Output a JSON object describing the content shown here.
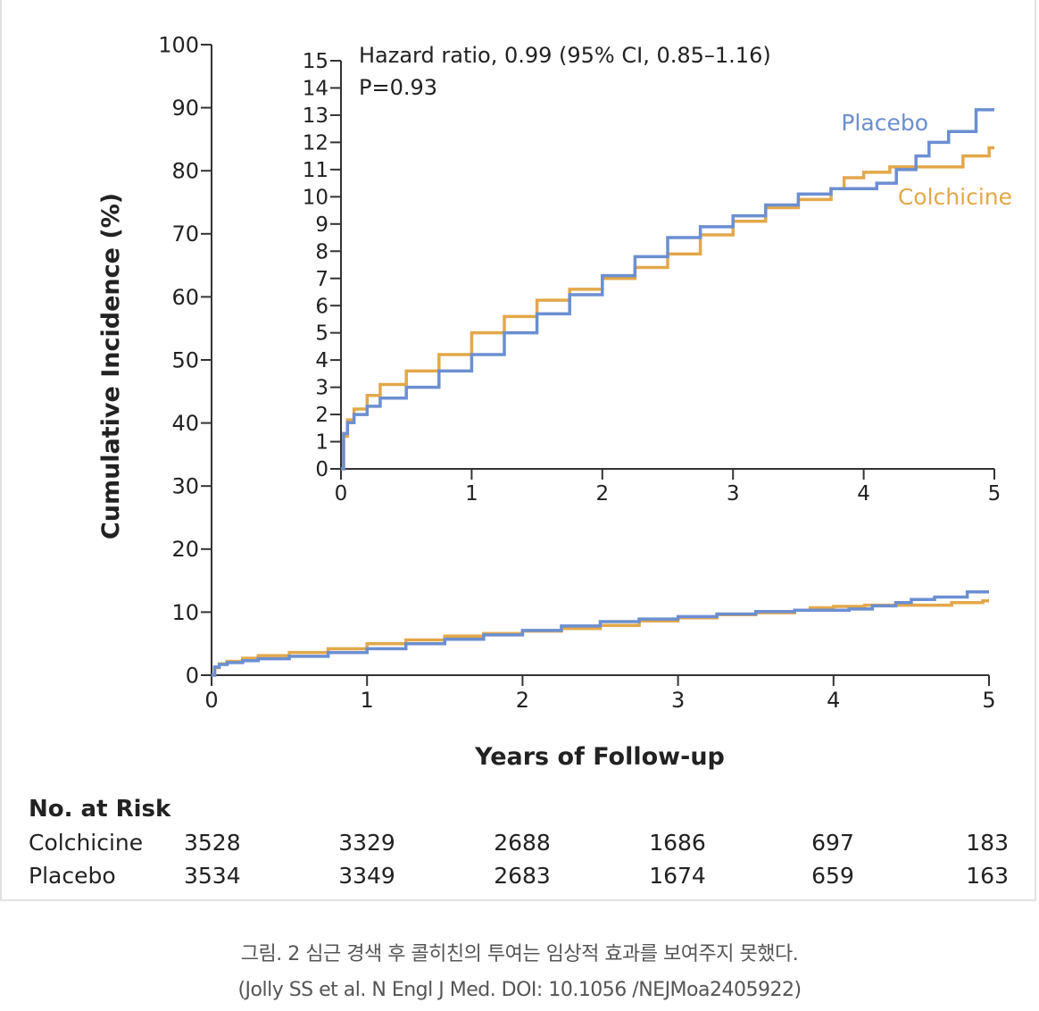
{
  "chart_data": [
    {
      "type": "line",
      "step": true,
      "panel": "main",
      "ylabel": "Cumulative Incidence (%)",
      "xlabel": "Years of Follow-up",
      "xlim": [
        0,
        5
      ],
      "ylim": [
        0,
        100
      ],
      "xticks": [
        "0",
        "1",
        "2",
        "3",
        "4",
        "5"
      ],
      "yticks": [
        "0",
        "10",
        "20",
        "30",
        "40",
        "50",
        "60",
        "70",
        "80",
        "90",
        "100"
      ],
      "grid": false,
      "colors": {
        "Colchicine": "#e3a84a",
        "Placebo": "#6b8fd1"
      },
      "series": [
        {
          "name": "Colchicine",
          "points": [
            [
              0,
              0
            ],
            [
              0.02,
              1.2
            ],
            [
              0.05,
              1.8
            ],
            [
              0.1,
              2.2
            ],
            [
              0.2,
              2.7
            ],
            [
              0.3,
              3.1
            ],
            [
              0.5,
              3.6
            ],
            [
              0.75,
              4.2
            ],
            [
              1,
              5.0
            ],
            [
              1.25,
              5.6
            ],
            [
              1.5,
              6.2
            ],
            [
              1.75,
              6.6
            ],
            [
              2,
              7.0
            ],
            [
              2.25,
              7.4
            ],
            [
              2.5,
              7.9
            ],
            [
              2.75,
              8.6
            ],
            [
              3,
              9.1
            ],
            [
              3.25,
              9.6
            ],
            [
              3.5,
              9.9
            ],
            [
              3.75,
              10.3
            ],
            [
              3.85,
              10.7
            ],
            [
              4,
              10.9
            ],
            [
              4.2,
              11.1
            ],
            [
              4.75,
              11.1
            ],
            [
              4.76,
              11.5
            ],
            [
              4.95,
              11.5
            ],
            [
              4.96,
              11.8
            ],
            [
              5,
              11.8
            ]
          ]
        },
        {
          "name": "Placebo",
          "points": [
            [
              0,
              0
            ],
            [
              0.02,
              1.3
            ],
            [
              0.05,
              1.7
            ],
            [
              0.1,
              2.0
            ],
            [
              0.2,
              2.3
            ],
            [
              0.3,
              2.6
            ],
            [
              0.5,
              3.0
            ],
            [
              0.75,
              3.6
            ],
            [
              1,
              4.2
            ],
            [
              1.25,
              5.0
            ],
            [
              1.5,
              5.7
            ],
            [
              1.75,
              6.4
            ],
            [
              2,
              7.1
            ],
            [
              2.25,
              7.8
            ],
            [
              2.5,
              8.5
            ],
            [
              2.75,
              8.9
            ],
            [
              3,
              9.3
            ],
            [
              3.25,
              9.7
            ],
            [
              3.5,
              10.1
            ],
            [
              3.75,
              10.3
            ],
            [
              4,
              10.3
            ],
            [
              4.1,
              10.5
            ],
            [
              4.25,
              11.0
            ],
            [
              4.4,
              11.5
            ],
            [
              4.5,
              12.0
            ],
            [
              4.65,
              12.4
            ],
            [
              4.85,
              12.4
            ],
            [
              4.86,
              13.2
            ],
            [
              5,
              13.2
            ]
          ]
        }
      ]
    },
    {
      "type": "line",
      "step": true,
      "panel": "inset",
      "xlim": [
        0,
        5
      ],
      "ylim": [
        0,
        15
      ],
      "xticks": [
        "0",
        "1",
        "2",
        "3",
        "4",
        "5"
      ],
      "yticks": [
        "0",
        "1",
        "2",
        "3",
        "4",
        "5",
        "6",
        "7",
        "8",
        "9",
        "10",
        "11",
        "12",
        "13",
        "14",
        "15"
      ],
      "annotations": [
        "Hazard ratio, 0.99 (95% CI, 0.85–1.16)",
        "P=0.93"
      ],
      "series_labels": [
        "Placebo",
        "Colchicine"
      ]
    }
  ],
  "risk_table": {
    "title": "No. at Risk",
    "rows": [
      {
        "label": "Colchicine",
        "values": [
          "3528",
          "3329",
          "2688",
          "1686",
          "697",
          "183"
        ]
      },
      {
        "label": "Placebo",
        "values": [
          "3534",
          "3349",
          "2683",
          "1674",
          "659",
          "163"
        ]
      }
    ]
  },
  "caption": {
    "line1": "그림. 2 심근 경색 후 콜히친의 투여는 임상적 효과를 보여주지 못했다.",
    "line2": "(Jolly SS et al. N Engl J Med. DOI: 10.1056 /NEJMoa2405922)"
  }
}
